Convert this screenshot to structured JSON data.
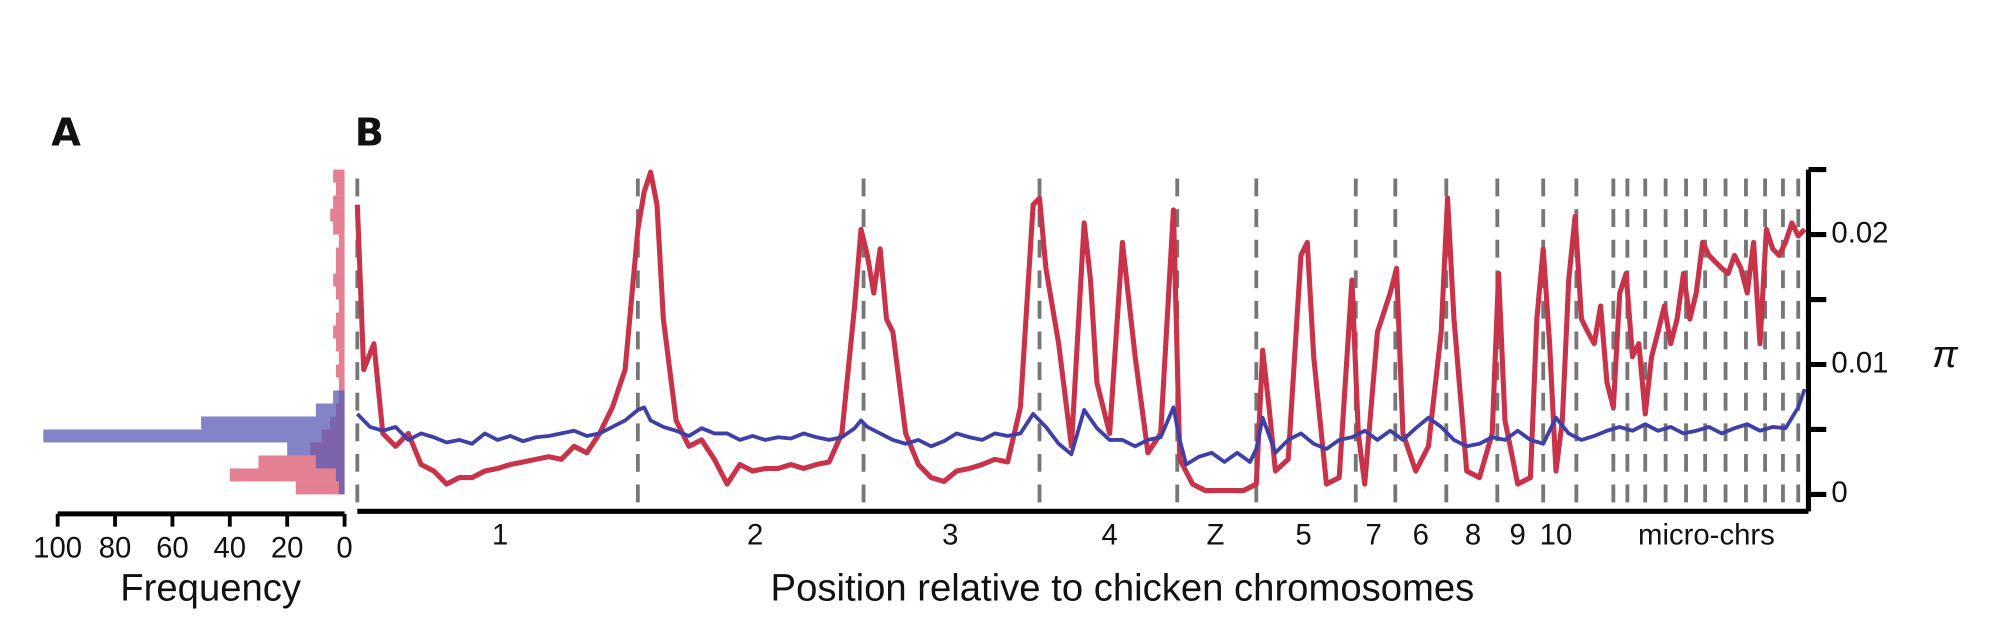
{
  "chart_data": [
    {
      "type": "histogram",
      "panel_label": "A",
      "orientation": "horizontal",
      "xlabel": "Frequency",
      "bins": [
        0,
        0.001,
        0.002,
        0.003,
        0.004,
        0.005,
        0.006,
        0.007,
        0.008,
        0.009,
        0.01,
        0.011,
        0.012,
        0.013,
        0.014,
        0.015,
        0.016,
        0.017,
        0.018,
        0.019,
        0.02,
        0.021,
        0.022,
        0.023,
        0.024,
        0.025
      ],
      "series": [
        {
          "color": "#d9566e",
          "values": [
            17,
            40,
            30,
            12,
            8,
            5,
            3,
            2,
            2,
            3,
            2,
            3,
            4,
            3,
            2,
            3,
            4,
            3,
            3,
            2,
            4,
            5,
            4,
            3,
            4
          ]
        },
        {
          "color": "#5a5ab4",
          "values": [
            2,
            3,
            10,
            20,
            105,
            50,
            10,
            4,
            0,
            0,
            0,
            0,
            0,
            0,
            0,
            0,
            0,
            0,
            0,
            0,
            0,
            0,
            0,
            0,
            0
          ]
        }
      ],
      "xlim": [
        100,
        0
      ],
      "xticks": [
        100,
        80,
        60,
        40,
        20,
        0
      ],
      "ylim": [
        -0.0013,
        0.025
      ]
    },
    {
      "type": "line",
      "panel_label": "B",
      "xlabel": "Position relative to chicken chromosomes",
      "ylabel": "π",
      "series": [
        {
          "color": "#c8334a",
          "x": [
            0,
            5,
            13,
            20,
            30,
            40,
            50,
            60,
            70,
            80,
            90,
            100,
            110,
            120,
            130,
            140,
            150,
            160,
            170,
            180,
            190,
            200,
            210,
            220,
            225,
            230,
            235,
            240,
            250,
            260,
            270,
            280,
            290,
            300,
            310,
            320,
            330,
            340,
            350,
            360,
            370,
            380,
            390,
            395,
            400,
            405,
            410,
            415,
            420,
            425,
            430,
            440,
            450,
            460,
            470,
            480,
            490,
            500,
            510,
            520,
            530,
            535,
            540,
            550,
            560,
            570,
            575,
            580,
            590,
            600,
            610,
            620,
            630,
            640,
            645,
            655,
            665,
            675,
            685,
            695,
            705,
            710,
            715,
            720,
            730,
            740,
            745,
            750,
            760,
            770,
            780,
            785,
            790,
            800,
            810,
            815,
            820,
            830,
            840,
            850,
            855,
            860,
            870,
            880,
            890,
            895,
            900,
            910,
            920,
            925,
            930,
            935,
            940,
            945,
            950,
            955,
            960,
            965,
            970,
            975,
            980,
            985,
            990,
            995,
            1000,
            1005,
            1010,
            1015,
            1020,
            1025,
            1030,
            1035,
            1040,
            1045,
            1050,
            1055,
            1060,
            1070,
            1075,
            1080,
            1085,
            1090,
            1095,
            1100,
            1105,
            1110,
            1115,
            1120,
            1125,
            1130,
            1135
          ],
          "values": [
            0.0223,
            0.0096,
            0.0116,
            0.0047,
            0.0037,
            0.0047,
            0.0023,
            0.0018,
            0.0008,
            0.0013,
            0.0013,
            0.0018,
            0.002,
            0.0023,
            0.0025,
            0.0027,
            0.0029,
            0.0027,
            0.0037,
            0.0032,
            0.0047,
            0.0067,
            0.0096,
            0.0204,
            0.0233,
            0.0248,
            0.0223,
            0.0135,
            0.0057,
            0.0037,
            0.0042,
            0.0027,
            0.0008,
            0.0023,
            0.0018,
            0.002,
            0.002,
            0.0023,
            0.002,
            0.0023,
            0.0025,
            0.0047,
            0.0145,
            0.0204,
            0.0184,
            0.0155,
            0.0189,
            0.0135,
            0.0125,
            0.0086,
            0.0047,
            0.0023,
            0.0013,
            0.001,
            0.0018,
            0.002,
            0.0023,
            0.0027,
            0.0025,
            0.0067,
            0.0223,
            0.0228,
            0.0174,
            0.0116,
            0.0037,
            0.0209,
            0.0165,
            0.0086,
            0.0047,
            0.0194,
            0.0106,
            0.0032,
            0.0047,
            0.0219,
            0.0027,
            0.0008,
            0.0003,
            0.0003,
            0.0003,
            0.0003,
            0.0008,
            0.0111,
            0.0067,
            0.0018,
            0.0027,
            0.0184,
            0.0194,
            0.0106,
            0.0008,
            0.0013,
            0.0165,
            0.0047,
            0.0008,
            0.0125,
            0.0155,
            0.0174,
            0.0047,
            0.0018,
            0.0037,
            0.0125,
            0.0228,
            0.0135,
            0.0018,
            0.0013,
            0.0047,
            0.017,
            0.0057,
            0.0008,
            0.0013,
            0.0135,
            0.0189,
            0.0116,
            0.0018,
            0.0057,
            0.0165,
            0.0214,
            0.0135,
            0.0125,
            0.0116,
            0.0145,
            0.0086,
            0.0067,
            0.0155,
            0.017,
            0.0106,
            0.0116,
            0.0062,
            0.0106,
            0.0125,
            0.0145,
            0.0116,
            0.0135,
            0.017,
            0.0135,
            0.0155,
            0.0194,
            0.0184,
            0.0174,
            0.017,
            0.0184,
            0.0174,
            0.0155,
            0.0194,
            0.0116,
            0.0204,
            0.0189,
            0.0184,
            0.0194,
            0.0209,
            0.0199,
            0.0204
          ]
        },
        {
          "color": "#3f3fa8",
          "x": [
            0,
            10,
            20,
            30,
            40,
            50,
            60,
            70,
            80,
            90,
            100,
            110,
            120,
            130,
            140,
            150,
            160,
            170,
            180,
            190,
            200,
            210,
            220,
            225,
            230,
            240,
            250,
            260,
            270,
            280,
            290,
            300,
            310,
            320,
            330,
            340,
            350,
            360,
            370,
            380,
            390,
            395,
            400,
            410,
            420,
            430,
            440,
            450,
            460,
            470,
            480,
            490,
            500,
            510,
            520,
            530,
            540,
            550,
            560,
            570,
            580,
            590,
            600,
            610,
            620,
            630,
            640,
            645,
            650,
            660,
            670,
            680,
            690,
            700,
            705,
            710,
            720,
            730,
            740,
            750,
            760,
            770,
            780,
            790,
            800,
            810,
            820,
            830,
            840,
            850,
            860,
            870,
            880,
            890,
            900,
            910,
            920,
            930,
            940,
            950,
            960,
            970,
            980,
            990,
            1000,
            1010,
            1020,
            1030,
            1040,
            1050,
            1060,
            1070,
            1080,
            1090,
            1100,
            1110,
            1120,
            1130,
            1135
          ],
          "values": [
            0.0062,
            0.0052,
            0.0049,
            0.0052,
            0.0042,
            0.0047,
            0.0044,
            0.004,
            0.0042,
            0.0039,
            0.0047,
            0.0042,
            0.0045,
            0.0041,
            0.0044,
            0.0045,
            0.0047,
            0.0049,
            0.0045,
            0.0047,
            0.0052,
            0.0057,
            0.0065,
            0.0067,
            0.0057,
            0.0052,
            0.0049,
            0.0045,
            0.0051,
            0.0047,
            0.0047,
            0.0042,
            0.0045,
            0.0042,
            0.0044,
            0.0043,
            0.0047,
            0.0044,
            0.0042,
            0.0044,
            0.0051,
            0.0057,
            0.0052,
            0.0047,
            0.0042,
            0.0039,
            0.0042,
            0.0037,
            0.0041,
            0.0047,
            0.0044,
            0.0042,
            0.0047,
            0.0045,
            0.0047,
            0.0062,
            0.0052,
            0.0039,
            0.0031,
            0.0065,
            0.0051,
            0.0042,
            0.0042,
            0.0037,
            0.0042,
            0.0044,
            0.0067,
            0.0042,
            0.0023,
            0.0029,
            0.0032,
            0.0025,
            0.0032,
            0.0025,
            0.0035,
            0.0059,
            0.0032,
            0.0042,
            0.0047,
            0.0039,
            0.0035,
            0.0042,
            0.0044,
            0.0049,
            0.0042,
            0.0049,
            0.0042,
            0.0051,
            0.0059,
            0.0052,
            0.0042,
            0.0037,
            0.0039,
            0.0044,
            0.0042,
            0.0049,
            0.0042,
            0.0039,
            0.0059,
            0.0047,
            0.0042,
            0.0045,
            0.0049,
            0.0052,
            0.0049,
            0.0054,
            0.0049,
            0.0052,
            0.0047,
            0.0049,
            0.0052,
            0.0047,
            0.0051,
            0.0054,
            0.0049,
            0.0052,
            0.0051,
            0.0067,
            0.0081
          ]
        }
      ],
      "xlim": [
        0,
        1138
      ],
      "boundaries": [
        0,
        220,
        397,
        535,
        643,
        705,
        783,
        814,
        854,
        894,
        930,
        956,
        985,
        996,
        1010,
        1026,
        1042,
        1057,
        1073,
        1089,
        1104,
        1118,
        1130
      ],
      "xticks": [
        {
          "value": 112,
          "label": "1"
        },
        {
          "value": 312,
          "label": "2"
        },
        {
          "value": 465,
          "label": "3"
        },
        {
          "value": 590,
          "label": "4"
        },
        {
          "value": 673,
          "label": "Z"
        },
        {
          "value": 742,
          "label": "5"
        },
        {
          "value": 797,
          "label": "7"
        },
        {
          "value": 834,
          "label": "6"
        },
        {
          "value": 875,
          "label": "8"
        },
        {
          "value": 910,
          "label": "9"
        },
        {
          "value": 940,
          "label": "10"
        },
        {
          "value": 1058,
          "label": "micro-chrs"
        }
      ],
      "ylim": [
        -0.0013,
        0.025
      ],
      "yticks": [
        0,
        0.01,
        0.02
      ],
      "minor_yticks": [
        0.005,
        0.015,
        0.025
      ]
    }
  ]
}
